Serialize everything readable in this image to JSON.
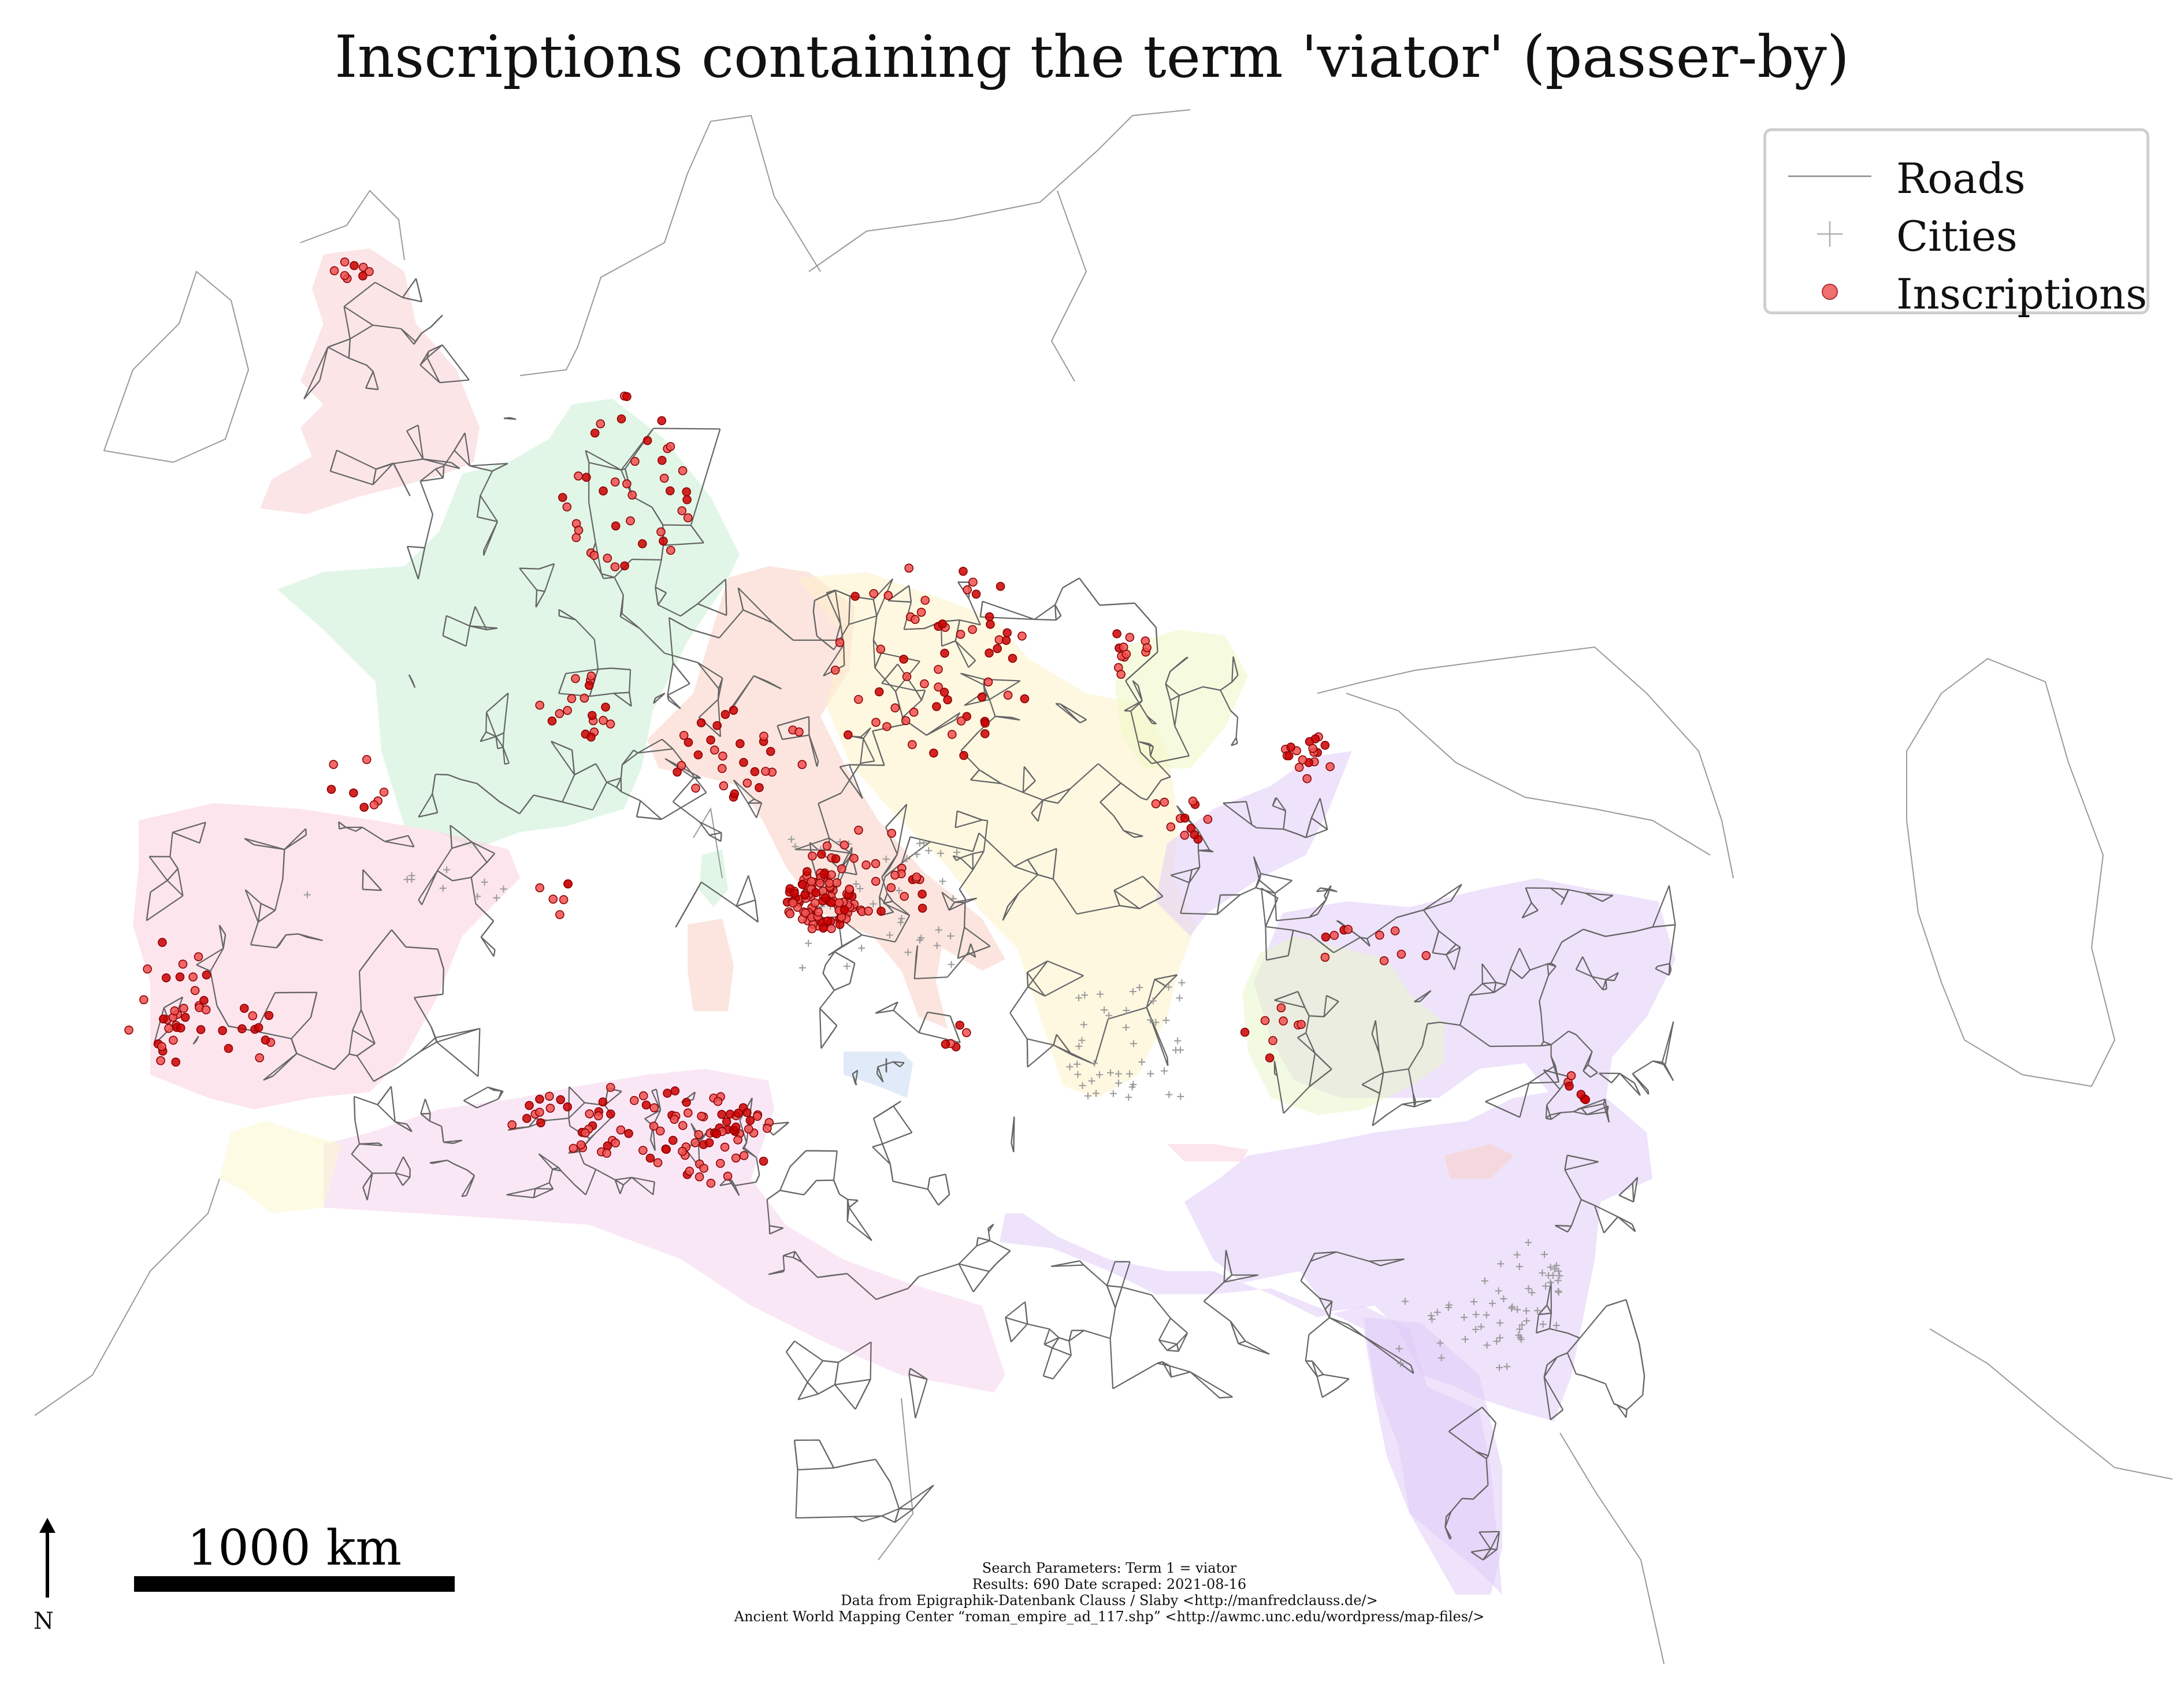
{
  "title": "Inscriptions containing the term 'viator' (passer-by)",
  "legend": {
    "roads_label": "Roads",
    "cities_label": "Cities",
    "inscriptions_label": "Inscriptions"
  },
  "scale_bar": {
    "label": "1000 km"
  },
  "north_arrow": {
    "label": "N"
  },
  "credits": {
    "line1": "Search Parameters: Term 1 = viator",
    "line2": "Results: 690 Date scraped: 2021-08-16",
    "line3": "Data from Epigraphik-Datenbank Clauss / Slaby <http://manfredclauss.de/>",
    "line4": "Ancient World Mapping Center “roman_empire_ad_117.shp” <http://awmc.unc.edu/wordpress/map-files/>"
  },
  "colors": {
    "roads": "#666666",
    "coastline": "#9a9a9a",
    "cities": "#9a9a9a",
    "inscription_fill": "#f05050",
    "inscription_edge": "#8b0000",
    "inscription_dense": "#cc0000",
    "province_britannia": "#f8d0d4",
    "province_gallia": "#c8eed4",
    "province_hispania": "#fbd0de",
    "province_italia": "#f9cfc4",
    "province_danube": "#fdf2c8",
    "province_dacia": "#eef8c4",
    "province_east": "#e0ccf8",
    "province_africa": "#f6d4ee",
    "province_mauretania": "#fbf8cc",
    "province_asia": "#e8f6c8",
    "province_sicilia": "#c8d8f2"
  }
}
